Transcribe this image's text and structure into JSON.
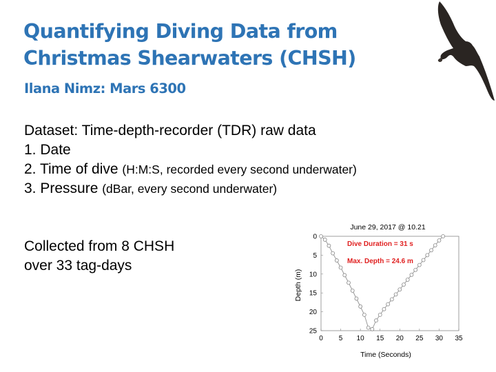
{
  "slide": {
    "title_line1": "Quantifying Diving Data from",
    "title_line2": "Christmas Shearwaters (CHSH)",
    "subtitle": "Ilana Nimz: Mars 6300",
    "dataset_line": "Dataset: Time-depth-recorder (TDR) raw data",
    "item1": "1. Date",
    "item2_main": "2. Time of dive",
    "item2_note": "(H:M:S, recorded every second underwater)",
    "item3_main": "3. Pressure",
    "item3_note": "(dBar, every second underwater)",
    "collected_line1": "Collected from 8 CHSH",
    "collected_line2": "over 33 tag-days",
    "bird_icon": "shearwater-bird-icon"
  },
  "chart_data": {
    "type": "line",
    "title": "June 29, 2017 @ 10.21",
    "xlabel": "Time (Seconds)",
    "ylabel": "Depth (m)",
    "xlim": [
      0,
      35
    ],
    "ylim": [
      0,
      25
    ],
    "y_inverted": true,
    "xticks": [
      0,
      5,
      10,
      15,
      20,
      25,
      30,
      35
    ],
    "yticks": [
      0,
      5,
      10,
      15,
      20,
      25
    ],
    "annotations": [
      "Dive Duration = 31 s",
      "Max. Depth = 24.6 m"
    ],
    "annotation_color": "#E02020",
    "series": [
      {
        "x": [
          0,
          1,
          2,
          3,
          4,
          5,
          6,
          7,
          8,
          9,
          10,
          11,
          12,
          13,
          14,
          15,
          16,
          17,
          18,
          19,
          20,
          21,
          22,
          23,
          24,
          25,
          26,
          27,
          28,
          29,
          30,
          31
        ],
        "values": [
          0,
          0.9,
          2.5,
          4.5,
          6.4,
          8.3,
          10.3,
          12.3,
          14.4,
          16.5,
          18.6,
          20.8,
          24.2,
          24.6,
          22.3,
          20.8,
          19.3,
          18.0,
          16.7,
          15.4,
          14.1,
          12.8,
          11.5,
          10.2,
          8.9,
          7.6,
          6.3,
          5.0,
          3.7,
          2.4,
          1.1,
          0
        ]
      }
    ]
  }
}
